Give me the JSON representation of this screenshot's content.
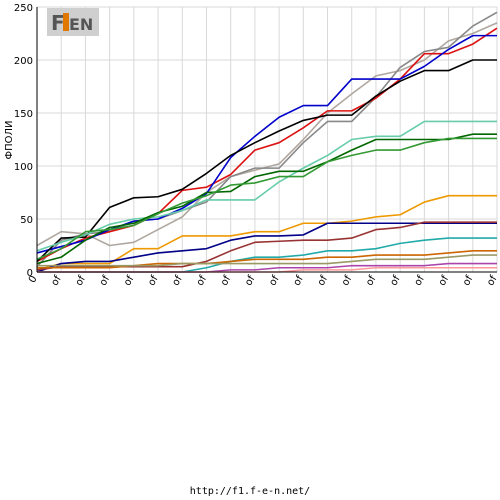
{
  "logo": {
    "text": "F1EN"
  },
  "footer": {
    "url": "http://f1.f-e-n.net/"
  },
  "chart_data": {
    "type": "line",
    "ylabel": "ФПОЛИ",
    "ylim": [
      0,
      250
    ],
    "yticks": [
      0,
      50,
      100,
      150,
      200,
      250
    ],
    "x_tick_labels": [
      "0",
      "of",
      "of",
      "of",
      "of",
      "of",
      "of",
      "of",
      "of",
      "of",
      "of",
      "of",
      "of",
      "of",
      "of",
      "of",
      "of",
      "of",
      "of",
      "of"
    ],
    "grid": true,
    "series": [
      {
        "color": "#b0a8a0",
        "values": [
          25,
          38,
          36,
          25,
          28,
          40,
          52,
          75,
          90,
          96,
          102,
          125,
          150,
          168,
          185,
          190,
          200,
          218,
          225,
          235
        ]
      },
      {
        "color": "#888888",
        "values": [
          5,
          30,
          36,
          38,
          48,
          50,
          58,
          66,
          90,
          98,
          98,
          122,
          142,
          142,
          165,
          193,
          208,
          212,
          232,
          245
        ]
      },
      {
        "color": "#dd1111",
        "values": [
          10,
          22,
          32,
          38,
          44,
          55,
          77,
          80,
          92,
          115,
          122,
          136,
          152,
          152,
          164,
          182,
          206,
          206,
          215,
          230
        ]
      },
      {
        "color": "#0000cc",
        "values": [
          18,
          24,
          30,
          40,
          48,
          50,
          60,
          74,
          108,
          128,
          146,
          157,
          157,
          182,
          182,
          182,
          194,
          210,
          223,
          223
        ]
      },
      {
        "color": "#000000",
        "values": [
          10,
          32,
          33,
          61,
          70,
          71,
          78,
          93,
          110,
          122,
          133,
          143,
          148,
          148,
          166,
          180,
          190,
          190,
          200,
          200
        ]
      },
      {
        "color": "#66ccaa",
        "values": [
          20,
          28,
          35,
          45,
          50,
          52,
          58,
          68,
          68,
          68,
          85,
          98,
          110,
          125,
          128,
          128,
          142,
          142,
          142,
          142
        ]
      },
      {
        "color": "#006600",
        "values": [
          8,
          14,
          30,
          42,
          46,
          56,
          62,
          75,
          76,
          90,
          95,
          95,
          104,
          115,
          125,
          125,
          125,
          125,
          130,
          130
        ]
      },
      {
        "color": "#339933",
        "values": [
          12,
          22,
          38,
          40,
          44,
          55,
          65,
          72,
          82,
          84,
          90,
          90,
          104,
          110,
          115,
          115,
          122,
          126,
          126,
          126
        ]
      },
      {
        "color": "#ee9900",
        "values": [
          2,
          8,
          8,
          8,
          22,
          22,
          34,
          34,
          34,
          38,
          38,
          46,
          46,
          48,
          52,
          54,
          66,
          72,
          72,
          72
        ]
      },
      {
        "color": "#000088",
        "values": [
          0,
          8,
          10,
          10,
          14,
          18,
          20,
          22,
          30,
          34,
          34,
          35,
          46,
          46,
          46,
          46,
          46,
          46,
          46,
          46
        ]
      },
      {
        "color": "#993333",
        "values": [
          2,
          5,
          5,
          5,
          5,
          5,
          5,
          10,
          20,
          28,
          29,
          30,
          30,
          32,
          40,
          42,
          47,
          47,
          47,
          47
        ]
      },
      {
        "color": "#22aaaa",
        "values": [
          0,
          0,
          0,
          0,
          0,
          0,
          0,
          4,
          10,
          14,
          14,
          16,
          20,
          20,
          22,
          27,
          30,
          32,
          32,
          32
        ]
      },
      {
        "color": "#cc6600",
        "values": [
          4,
          4,
          4,
          4,
          6,
          8,
          8,
          8,
          10,
          12,
          12,
          12,
          14,
          14,
          16,
          16,
          16,
          18,
          20,
          20
        ]
      },
      {
        "color": "#999966",
        "values": [
          6,
          6,
          6,
          6,
          6,
          6,
          8,
          8,
          8,
          8,
          8,
          8,
          8,
          10,
          12,
          12,
          12,
          14,
          16,
          16
        ]
      },
      {
        "color": "#aa44aa",
        "values": [
          0,
          0,
          0,
          0,
          0,
          0,
          0,
          0,
          2,
          2,
          4,
          4,
          4,
          6,
          6,
          6,
          6,
          8,
          8,
          8
        ]
      },
      {
        "color": "#ff9999",
        "values": [
          0,
          0,
          0,
          0,
          0,
          0,
          0,
          0,
          0,
          0,
          0,
          2,
          2,
          2,
          4,
          4,
          4,
          4,
          4,
          4
        ]
      }
    ]
  }
}
